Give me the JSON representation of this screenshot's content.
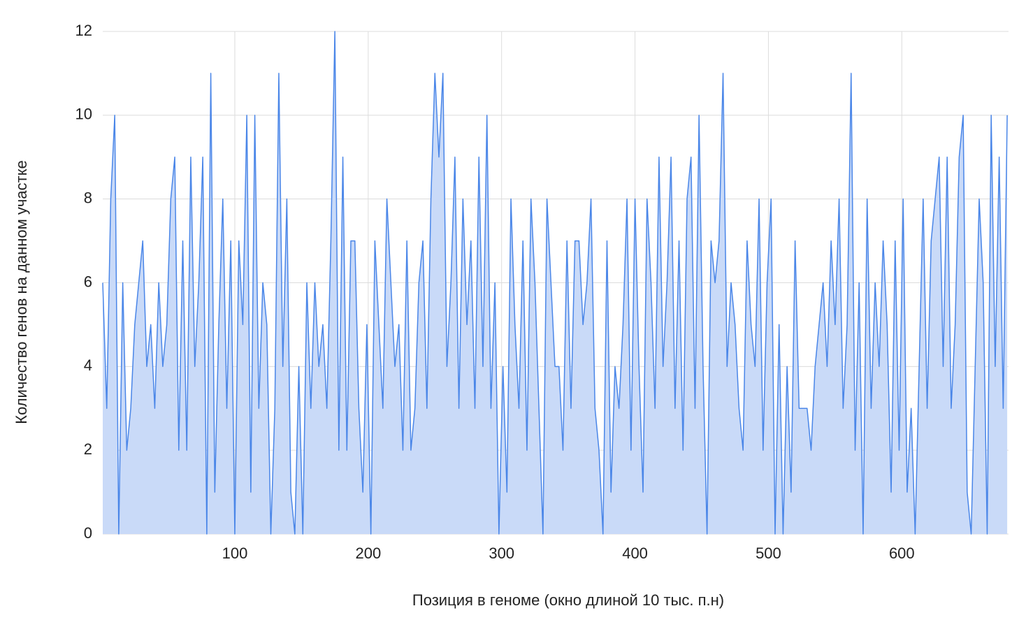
{
  "chart_data": {
    "type": "area",
    "y_label": "Количество генов на данном участке",
    "x_label": "Позиция в геноме (окно длиной 10 тыс. п.н)",
    "color": "#4a86e8",
    "fill": "#c9daf8",
    "grid": true,
    "xlim": [
      1,
      680
    ],
    "xticks": [
      100,
      200,
      300,
      400,
      500,
      600
    ],
    "ylim": [
      0,
      12
    ],
    "yticks": [
      0,
      2,
      4,
      6,
      8,
      10,
      12
    ],
    "x": [
      1,
      4,
      7,
      10,
      13,
      16,
      19,
      22,
      25,
      28,
      31,
      34,
      37,
      40,
      43,
      46,
      49,
      52,
      55,
      58,
      61,
      64,
      67,
      70,
      73,
      76,
      79,
      82,
      85,
      88,
      91,
      94,
      97,
      100,
      103,
      106,
      109,
      112,
      115,
      118,
      121,
      124,
      127,
      130,
      133,
      136,
      139,
      142,
      145,
      148,
      151,
      154,
      157,
      160,
      163,
      166,
      169,
      172,
      175,
      178,
      181,
      184,
      187,
      190,
      193,
      196,
      199,
      202,
      205,
      208,
      211,
      214,
      217,
      220,
      223,
      226,
      229,
      232,
      235,
      238,
      241,
      244,
      247,
      250,
      253,
      256,
      259,
      262,
      265,
      268,
      271,
      274,
      277,
      280,
      283,
      286,
      289,
      292,
      295,
      298,
      301,
      304,
      307,
      310,
      313,
      316,
      319,
      322,
      325,
      328,
      331,
      334,
      337,
      340,
      343,
      346,
      349,
      352,
      355,
      358,
      361,
      364,
      367,
      370,
      373,
      376,
      379,
      382,
      385,
      388,
      391,
      394,
      397,
      400,
      403,
      406,
      409,
      412,
      415,
      418,
      421,
      424,
      427,
      430,
      433,
      436,
      439,
      442,
      445,
      448,
      451,
      454,
      457,
      460,
      463,
      466,
      469,
      472,
      475,
      478,
      481,
      484,
      487,
      490,
      493,
      496,
      499,
      502,
      505,
      508,
      511,
      514,
      517,
      520,
      523,
      526,
      529,
      532,
      535,
      538,
      541,
      544,
      547,
      550,
      553,
      556,
      559,
      562,
      565,
      568,
      571,
      574,
      577,
      580,
      583,
      586,
      589,
      592,
      595,
      598,
      601,
      604,
      607,
      610,
      613,
      616,
      619,
      622,
      625,
      628,
      631,
      634,
      637,
      640,
      643,
      646,
      649,
      652,
      655,
      658,
      661,
      664,
      667,
      670,
      673,
      676,
      679
    ],
    "values": [
      6,
      3,
      8,
      10,
      0,
      6,
      2,
      3,
      5,
      6,
      7,
      4,
      5,
      3,
      6,
      4,
      5,
      8,
      9,
      2,
      7,
      2,
      9,
      4,
      6,
      9,
      0,
      11,
      1,
      5,
      8,
      3,
      7,
      0,
      7,
      5,
      10,
      1,
      10,
      3,
      6,
      5,
      0,
      3,
      11,
      4,
      8,
      1,
      0,
      4,
      0,
      6,
      3,
      6,
      4,
      5,
      3,
      7,
      12,
      2,
      9,
      2,
      7,
      7,
      3,
      1,
      5,
      0,
      7,
      5,
      3,
      8,
      6,
      4,
      5,
      2,
      7,
      2,
      3,
      6,
      7,
      3,
      8,
      11,
      9,
      11,
      4,
      6,
      9,
      3,
      8,
      5,
      7,
      3,
      9,
      4,
      10,
      3,
      6,
      0,
      4,
      1,
      8,
      5,
      3,
      7,
      2,
      8,
      6,
      3,
      0,
      8,
      6,
      4,
      4,
      2,
      7,
      3,
      7,
      7,
      5,
      6,
      8,
      3,
      2,
      0,
      7,
      1,
      4,
      3,
      5,
      8,
      2,
      8,
      4,
      1,
      8,
      6,
      3,
      9,
      4,
      6,
      9,
      3,
      7,
      2,
      8,
      9,
      3,
      10,
      4,
      0,
      7,
      6,
      7,
      11,
      4,
      6,
      5,
      3,
      2,
      7,
      5,
      4,
      8,
      2,
      6,
      8,
      0,
      5,
      0,
      4,
      1,
      7,
      3,
      3,
      3,
      2,
      4,
      5,
      6,
      4,
      7,
      5,
      8,
      3,
      5,
      11,
      2,
      6,
      0,
      8,
      3,
      6,
      4,
      7,
      5,
      1,
      7,
      2,
      8,
      1,
      3,
      0,
      4,
      8,
      3,
      7,
      8,
      9,
      4,
      9,
      3,
      5,
      9,
      10,
      1,
      0,
      4,
      8,
      6,
      0,
      10,
      4,
      9,
      3,
      10
    ]
  }
}
